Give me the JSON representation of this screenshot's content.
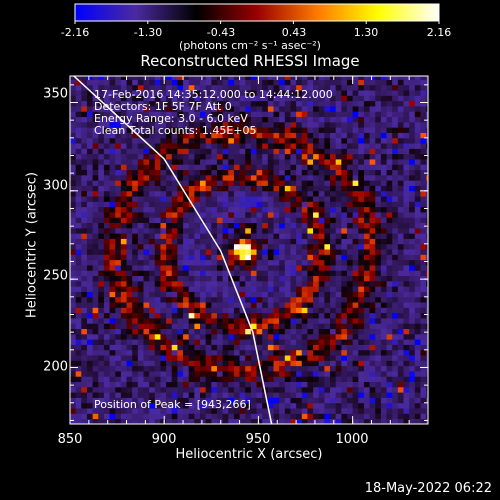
{
  "chart_data": {
    "type": "heatmap",
    "title": "Reconstructed RHESSI Image",
    "xlabel": "Heliocentric X (arcsec)",
    "ylabel": "Heliocentric Y (arcsec)",
    "xlim": [
      850,
      1040
    ],
    "ylim": [
      168,
      365
    ],
    "xticks": [
      850,
      900,
      950,
      1000
    ],
    "yticks": [
      200,
      250,
      300,
      350
    ],
    "colorbar": {
      "ticks": [
        -2.16,
        -1.3,
        -0.43,
        0.43,
        1.3,
        2.16
      ],
      "tick_labels": [
        "-2.16",
        "-1.30",
        "-0.43",
        "0.43",
        "1.30",
        "2.16"
      ],
      "units": "(photons cm⁻² s⁻¹ asec⁻²)",
      "colors": [
        "#0000ff",
        "#4b2a9e",
        "#000000",
        "#9a0000",
        "#ff7a00",
        "#ffff00",
        "#ffffff"
      ]
    },
    "annotations": [
      "17-Feb-2016 14:35:12.000 to 14:44:12.000",
      "Detectors: 1F 5F 7F  Att 0",
      "Energy Range: 3.0 - 6.0 keV",
      "Clean     Total counts: 1.45E+05"
    ],
    "peak_label": "Position of Peak = [943,266]",
    "peak": [
      943,
      266
    ],
    "source_center": [
      942,
      266
    ],
    "ring_radii_arcsec": [
      42,
      68
    ],
    "limb_curve": [
      [
        852,
        365
      ],
      [
        900,
        318
      ],
      [
        930,
        266
      ],
      [
        947,
        220
      ],
      [
        957,
        168
      ]
    ]
  },
  "footer": {
    "date": "18-May-2022 06:22"
  }
}
